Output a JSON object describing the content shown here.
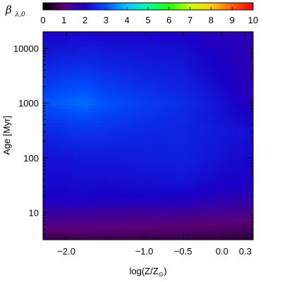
{
  "chart_data": {
    "type": "heatmap",
    "colorbar": {
      "label_main": "β",
      "label_sub": "λ,0",
      "range": [
        0,
        10
      ],
      "ticks": [
        "0",
        "1",
        "2",
        "3",
        "4",
        "5",
        "6",
        "7",
        "8",
        "9",
        "10"
      ],
      "colormap": "rainbow-violet-to-red",
      "colors": [
        "#000000",
        "#5a0078",
        "#1a00c8",
        "#0050ff",
        "#00c8ff",
        "#00ffa0",
        "#20ff00",
        "#c8ff00",
        "#ffd000",
        "#ff6000",
        "#ff0000"
      ]
    },
    "xlabel": "log(Z/Z",
    "xlabel_sub": "⊙",
    "xlabel_close": ")",
    "ylabel": "Age",
    "ylabel_unit": "[Myr]",
    "x_ticks": [
      {
        "value": -2.0,
        "label": "−2.0"
      },
      {
        "value": -1.0,
        "label": "−1.0"
      },
      {
        "value": -0.5,
        "label": "−0.5"
      },
      {
        "value": 0.0,
        "label": "0.0"
      },
      {
        "value": 0.3,
        "label": "0.3"
      }
    ],
    "y_scale": "log",
    "y_ticks": [
      {
        "value": 10,
        "label": "10"
      },
      {
        "value": 100,
        "label": "100"
      },
      {
        "value": 1000,
        "label": "1000"
      },
      {
        "value": 10000,
        "label": "10000"
      }
    ],
    "xlim": [
      -2.3,
      0.4
    ],
    "ylim_myr": [
      3.2,
      20000
    ],
    "grid": false,
    "field_description": "beta values over metallicity and age",
    "x_nodes": [
      -2.3,
      -2.0,
      -1.75,
      -1.5,
      -1.0,
      -0.5,
      0.0,
      0.3,
      0.4
    ],
    "y_nodes_log_age": [
      0.5,
      0.8,
      1.0,
      1.2,
      1.5,
      2.0,
      2.5,
      2.8,
      3.0,
      3.5,
      4.0,
      4.3
    ],
    "values": [
      [
        0.6,
        0.6,
        0.6,
        0.6,
        0.6,
        0.6,
        0.55,
        0.5,
        0.5
      ],
      [
        1.2,
        1.2,
        1.2,
        1.15,
        1.1,
        1.05,
        1.0,
        0.9,
        0.9
      ],
      [
        1.5,
        1.5,
        1.5,
        1.45,
        1.4,
        1.4,
        1.35,
        1.3,
        1.3
      ],
      [
        1.9,
        1.95,
        1.95,
        1.9,
        1.9,
        1.85,
        1.7,
        1.6,
        1.6
      ],
      [
        2.1,
        2.1,
        2.15,
        2.1,
        2.15,
        2.2,
        2.0,
        1.95,
        1.9
      ],
      [
        2.2,
        2.25,
        2.3,
        2.3,
        2.35,
        2.4,
        2.2,
        2.1,
        2.05
      ],
      [
        2.5,
        2.6,
        2.65,
        2.6,
        2.5,
        2.45,
        2.3,
        2.2,
        2.1
      ],
      [
        2.8,
        2.9,
        3.0,
        2.85,
        2.65,
        2.5,
        2.2,
        2.0,
        1.9
      ],
      [
        3.0,
        3.15,
        3.25,
        3.0,
        2.75,
        2.55,
        2.2,
        1.9,
        1.8
      ],
      [
        2.6,
        2.7,
        2.75,
        2.6,
        2.45,
        2.35,
        2.0,
        1.8,
        1.7
      ],
      [
        2.2,
        2.25,
        2.3,
        2.25,
        2.2,
        2.15,
        1.9,
        1.8,
        1.7
      ],
      [
        2.0,
        2.05,
        2.05,
        2.0,
        2.0,
        1.95,
        1.8,
        1.7,
        1.6
      ]
    ]
  }
}
